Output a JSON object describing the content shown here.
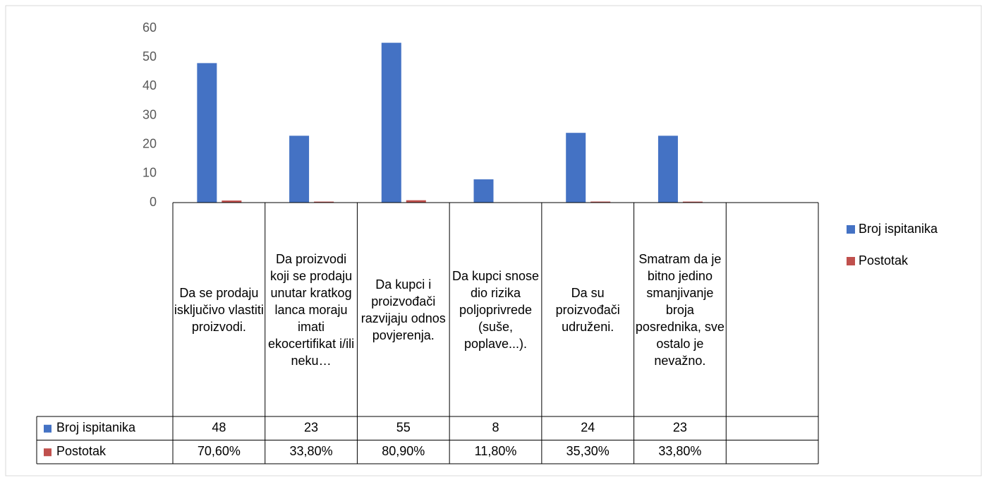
{
  "chart_data": {
    "type": "bar",
    "categories": [
      "Da se prodaju isključivo vlastiti proizvodi.",
      "Da proizvodi koji se prodaju unutar kratkog lanca moraju imati ekocertifikat i/ili neku…",
      "Da kupci i proizvođači razvijaju odnos povjerenja.",
      "Da kupci snose dio rizika poljoprivrede (suše, poplave...).",
      "Da su proizvođači udruženi.",
      "Smatram da je bitno jedino smanjivanje broja posrednika, sve ostalo je nevažno.",
      null
    ],
    "series": [
      {
        "name": "Broj ispitanika",
        "color": "#4472c4",
        "values": [
          48,
          23,
          55,
          8,
          24,
          23,
          null
        ]
      },
      {
        "name": "Postotak",
        "color": "#c0504d",
        "values": [
          0.706,
          0.338,
          0.809,
          0.118,
          0.353,
          0.338,
          null
        ],
        "value_labels": [
          "70,60%",
          "33,80%",
          "80,90%",
          "11,80%",
          "35,30%",
          "33,80%",
          null
        ]
      }
    ],
    "ylim": [
      0,
      60
    ],
    "yticks": [
      0,
      10,
      20,
      30,
      40,
      50,
      60
    ],
    "grid": false,
    "legend": "right",
    "data_table": true
  }
}
